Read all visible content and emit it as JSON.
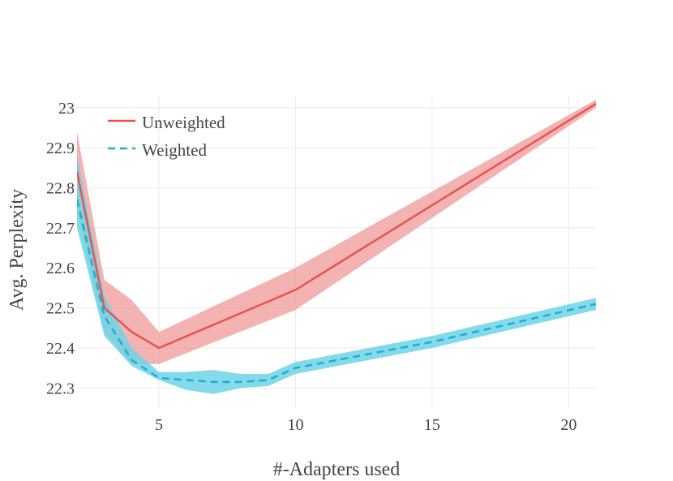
{
  "chart_data": {
    "type": "line",
    "title": "",
    "xlabel": "#-Adapters used",
    "ylabel": "Avg. Perplexity",
    "xlim": [
      2,
      21
    ],
    "ylim": [
      22.25,
      23.03
    ],
    "xticks": [
      5,
      10,
      15,
      20
    ],
    "yticks": [
      22.3,
      22.4,
      22.5,
      22.6,
      22.7,
      22.8,
      22.9,
      23
    ],
    "ytick_labels": [
      "22.3",
      "22.4",
      "22.5",
      "22.6",
      "22.7",
      "22.8",
      "22.9",
      "23"
    ],
    "grid": true,
    "legend_position": "top-left",
    "series": [
      {
        "name": "Unweighted",
        "color": "#e8544f",
        "band_color": "#ef9a98",
        "dash": "solid",
        "x": [
          2,
          3,
          4,
          5,
          10,
          21
        ],
        "values": [
          22.84,
          22.5,
          22.44,
          22.4,
          22.545,
          23.01
        ],
        "lower": [
          22.74,
          22.44,
          22.36,
          22.36,
          22.495,
          23.0
        ],
        "upper": [
          22.94,
          22.57,
          22.52,
          22.44,
          22.6,
          23.02
        ]
      },
      {
        "name": "Weighted",
        "color": "#1ab0d0",
        "band_color": "#6fd3e6",
        "dash": "dashed",
        "x": [
          2,
          3,
          4,
          5,
          6,
          7,
          8,
          9,
          10,
          15,
          21
        ],
        "values": [
          22.77,
          22.48,
          22.37,
          22.325,
          22.32,
          22.315,
          22.315,
          22.32,
          22.35,
          22.415,
          22.51
        ],
        "lower": [
          22.7,
          22.43,
          22.355,
          22.32,
          22.295,
          22.285,
          22.3,
          22.305,
          22.335,
          22.4,
          22.495
        ],
        "upper": [
          22.88,
          22.53,
          22.4,
          22.34,
          22.34,
          22.345,
          22.335,
          22.335,
          22.365,
          22.43,
          22.525
        ]
      }
    ]
  }
}
